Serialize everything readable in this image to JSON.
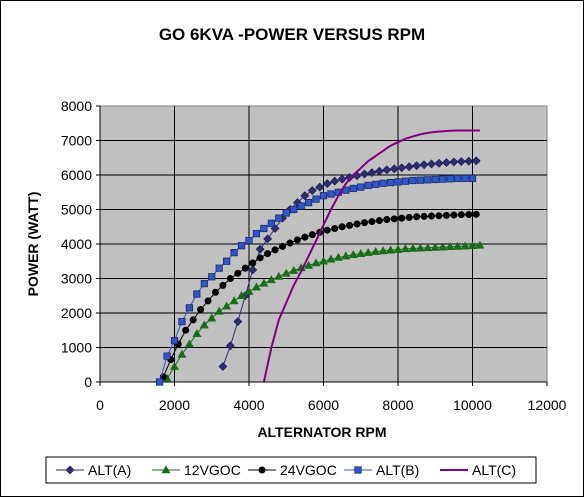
{
  "chart_data": {
    "type": "scatter",
    "title": "GO 6KVA -POWER VERSUS RPM",
    "xlabel": "ALTERNATOR RPM",
    "ylabel": "POWER (WATT)",
    "xlim": [
      0,
      12000
    ],
    "ylim": [
      0,
      8000
    ],
    "x_ticks": [
      "0",
      "2000",
      "4000",
      "6000",
      "8000",
      "10000",
      "12000"
    ],
    "y_ticks": [
      "0",
      "1000",
      "2000",
      "3000",
      "4000",
      "5000",
      "6000",
      "7000",
      "8000"
    ],
    "plot_background": "#c0c0c0",
    "grid": true,
    "legend_position": "bottom",
    "series": [
      {
        "name": "ALT(A)",
        "color": "#2e2e6e",
        "marker": "diamond",
        "x": [
          3300,
          3500,
          3700,
          3900,
          4100,
          4300,
          4500,
          4700,
          4900,
          5100,
          5300,
          5500,
          5700,
          5900,
          6100,
          6300,
          6500,
          6700,
          6900,
          7100,
          7300,
          7500,
          7700,
          7900,
          8100,
          8300,
          8500,
          8700,
          8900,
          9100,
          9300,
          9500,
          9700,
          9900,
          10100
        ],
        "y": [
          450,
          1050,
          1750,
          2500,
          3250,
          3850,
          4150,
          4450,
          4750,
          5000,
          5200,
          5400,
          5550,
          5650,
          5750,
          5820,
          5880,
          5930,
          5980,
          6030,
          6070,
          6110,
          6150,
          6180,
          6210,
          6240,
          6270,
          6300,
          6320,
          6340,
          6360,
          6380,
          6390,
          6400,
          6410
        ]
      },
      {
        "name": "12VGOC",
        "color": "#1a6b1a",
        "marker": "triangle",
        "x": [
          1800,
          2000,
          2200,
          2400,
          2600,
          2800,
          3000,
          3200,
          3400,
          3600,
          3800,
          4000,
          4200,
          4400,
          4600,
          4800,
          5000,
          5200,
          5400,
          5600,
          5800,
          6000,
          6200,
          6400,
          6600,
          6800,
          7000,
          7200,
          7400,
          7600,
          7800,
          8000,
          8200,
          8400,
          8600,
          8800,
          9000,
          9200,
          9400,
          9600,
          9800,
          10000,
          10200
        ],
        "y": [
          100,
          450,
          800,
          1100,
          1400,
          1650,
          1850,
          2050,
          2200,
          2350,
          2500,
          2620,
          2750,
          2860,
          2960,
          3060,
          3150,
          3230,
          3310,
          3380,
          3450,
          3500,
          3560,
          3610,
          3650,
          3690,
          3720,
          3750,
          3780,
          3800,
          3820,
          3840,
          3860,
          3870,
          3880,
          3890,
          3900,
          3910,
          3920,
          3930,
          3940,
          3950,
          3960
        ]
      },
      {
        "name": "24VGOC",
        "color": "#000000",
        "marker": "circle",
        "x": [
          1700,
          1900,
          2100,
          2300,
          2500,
          2700,
          2900,
          3100,
          3300,
          3500,
          3700,
          3900,
          4100,
          4300,
          4500,
          4700,
          4900,
          5100,
          5300,
          5500,
          5700,
          5900,
          6100,
          6300,
          6500,
          6700,
          6900,
          7100,
          7300,
          7500,
          7700,
          7900,
          8100,
          8300,
          8500,
          8700,
          8900,
          9100,
          9300,
          9500,
          9700,
          9900,
          10100
        ],
        "y": [
          150,
          650,
          1100,
          1500,
          1800,
          2100,
          2350,
          2600,
          2800,
          3000,
          3150,
          3300,
          3450,
          3600,
          3720,
          3830,
          3930,
          4030,
          4120,
          4200,
          4270,
          4340,
          4400,
          4450,
          4500,
          4540,
          4580,
          4620,
          4650,
          4680,
          4710,
          4730,
          4750,
          4770,
          4790,
          4800,
          4810,
          4820,
          4830,
          4840,
          4850,
          4855,
          4860
        ]
      },
      {
        "name": "ALT(B)",
        "color": "#3355cc",
        "marker": "square",
        "x": [
          1600,
          1800,
          2000,
          2200,
          2400,
          2600,
          2800,
          3000,
          3200,
          3400,
          3600,
          3800,
          4000,
          4200,
          4400,
          4600,
          4800,
          5000,
          5200,
          5400,
          5600,
          5800,
          6000,
          6200,
          6400,
          6600,
          6800,
          7000,
          7200,
          7400,
          7600,
          7800,
          8000,
          8200,
          8400,
          8600,
          8800,
          9000,
          9200,
          9400,
          9600,
          9800,
          10000
        ],
        "y": [
          0,
          750,
          1200,
          1750,
          2150,
          2550,
          2850,
          3050,
          3300,
          3500,
          3750,
          3950,
          4100,
          4300,
          4450,
          4600,
          4750,
          4900,
          5000,
          5100,
          5200,
          5300,
          5400,
          5450,
          5500,
          5560,
          5610,
          5650,
          5700,
          5730,
          5760,
          5780,
          5800,
          5820,
          5840,
          5850,
          5860,
          5870,
          5880,
          5890,
          5900,
          5900,
          5900
        ]
      },
      {
        "name": "ALT(C)",
        "color": "#800080",
        "marker": "none",
        "x": [
          4400,
          4500,
          4600,
          4700,
          4800,
          5000,
          5200,
          5400,
          5600,
          5800,
          6000,
          6200,
          6400,
          6600,
          6800,
          7000,
          7200,
          7400,
          7600,
          7800,
          8000,
          8200,
          8400,
          8600,
          8800,
          9000,
          9200,
          9400,
          9600,
          9800,
          10000,
          10200
        ],
        "y": [
          0,
          500,
          1000,
          1400,
          1800,
          2300,
          2800,
          3200,
          3650,
          4100,
          4550,
          5000,
          5400,
          5750,
          6000,
          6200,
          6400,
          6550,
          6700,
          6850,
          6950,
          7050,
          7120,
          7180,
          7220,
          7250,
          7270,
          7280,
          7290,
          7290,
          7290,
          7290
        ]
      }
    ]
  }
}
